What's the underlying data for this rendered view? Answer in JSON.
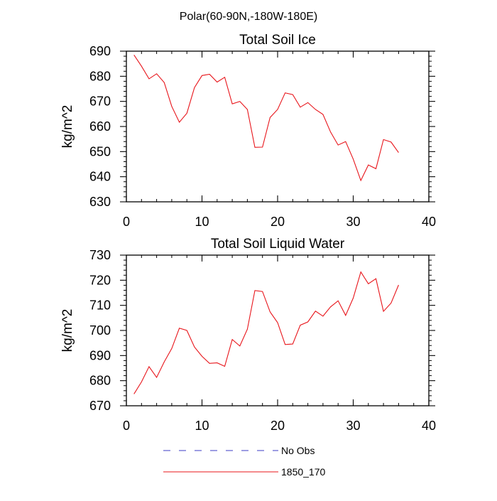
{
  "page_title": "Polar(60-90N,-180W-180E)",
  "legend": [
    {
      "label": "No Obs",
      "color": "#3b3bc4",
      "dash": true
    },
    {
      "label": "1850_170",
      "color": "#e8151b",
      "dash": false
    }
  ],
  "chart_data": [
    {
      "type": "line",
      "title": "Total Soil Ice",
      "xlabel": "",
      "ylabel": "kg/m^2",
      "xlim": [
        0,
        40
      ],
      "ylim": [
        630,
        690
      ],
      "xticks": [
        0,
        10,
        20,
        30,
        40
      ],
      "yticks": [
        630,
        640,
        650,
        660,
        670,
        680,
        690
      ],
      "grid": false,
      "x": [
        1,
        2,
        3,
        4,
        5,
        6,
        7,
        8,
        9,
        10,
        11,
        12,
        13,
        14,
        15,
        16,
        17,
        18,
        19,
        20,
        21,
        22,
        23,
        24,
        25,
        26,
        27,
        28,
        29,
        30,
        31,
        32,
        33,
        34,
        35,
        36
      ],
      "series": [
        {
          "name": "1850_170",
          "color": "#e8151b",
          "values": [
            688.5,
            684,
            679,
            681,
            677.5,
            668,
            661.7,
            665.3,
            675.5,
            680.3,
            680.8,
            677.7,
            679.6,
            669,
            670,
            666.8,
            651.7,
            651.8,
            663.6,
            666.8,
            673.4,
            672.7,
            667.7,
            669.5,
            666.8,
            664.8,
            657.8,
            652.6,
            654,
            647,
            638.5,
            644.7,
            643.2,
            654.8,
            653.8,
            649.6
          ]
        }
      ]
    },
    {
      "type": "line",
      "title": "Total Soil Liquid Water",
      "xlabel": "",
      "ylabel": "kg/m^2",
      "xlim": [
        0,
        40
      ],
      "ylim": [
        670,
        730
      ],
      "xticks": [
        0,
        10,
        20,
        30,
        40
      ],
      "yticks": [
        670,
        680,
        690,
        700,
        710,
        720,
        730
      ],
      "grid": false,
      "x": [
        1,
        2,
        3,
        4,
        5,
        6,
        7,
        8,
        9,
        10,
        11,
        12,
        13,
        14,
        15,
        16,
        17,
        18,
        19,
        20,
        21,
        22,
        23,
        24,
        25,
        26,
        27,
        28,
        29,
        30,
        31,
        32,
        33,
        34,
        35,
        36
      ],
      "series": [
        {
          "name": "1850_170",
          "color": "#e8151b",
          "values": [
            674.7,
            679.5,
            685.6,
            681.3,
            687.5,
            692.8,
            700.9,
            700,
            693.4,
            689.7,
            686.9,
            687.1,
            685.7,
            696.4,
            693.8,
            700.5,
            715.9,
            715.5,
            707.4,
            703.1,
            694.4,
            694.6,
            702.1,
            703.4,
            707.7,
            705.7,
            709.4,
            711.8,
            706,
            712.9,
            723.3,
            718.6,
            720.6,
            707.6,
            710.9,
            718.1
          ]
        }
      ]
    }
  ]
}
